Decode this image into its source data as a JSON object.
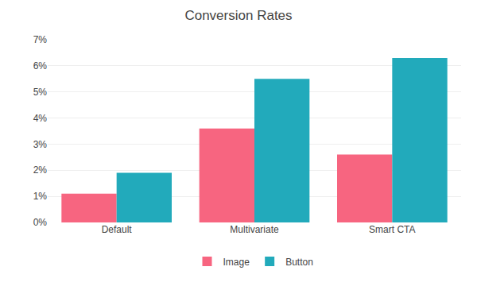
{
  "chart_data": {
    "type": "bar",
    "title": "Conversion Rates",
    "categories": [
      "Default",
      "Multivariate",
      "Smart CTA"
    ],
    "series": [
      {
        "name": "Image",
        "color": "#F76580",
        "values": [
          0.011,
          0.036,
          0.026
        ]
      },
      {
        "name": "Button",
        "color": "#22AABB",
        "values": [
          0.019,
          0.055,
          0.063
        ]
      }
    ],
    "ylim": [
      0,
      0.07
    ],
    "yticks": [
      {
        "value": 0.0,
        "label": "0%"
      },
      {
        "value": 0.01,
        "label": "1%"
      },
      {
        "value": 0.02,
        "label": "2%"
      },
      {
        "value": 0.03,
        "label": "3%"
      },
      {
        "value": 0.04,
        "label": "4%"
      },
      {
        "value": 0.05,
        "label": "5%"
      },
      {
        "value": 0.06,
        "label": "6%"
      },
      {
        "value": 0.07,
        "label": "7%"
      }
    ],
    "grid": true,
    "legend": "bottom"
  }
}
